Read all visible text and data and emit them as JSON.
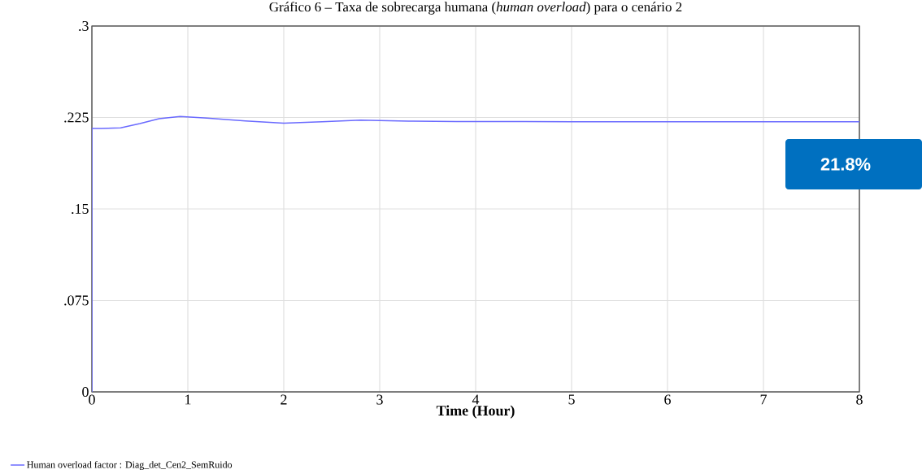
{
  "chart_data": {
    "type": "line",
    "title": "Gráfico 6 – Taxa de sobrecarga humana (*human overload*) para o cenário 2",
    "xlabel": "Time (Hour)",
    "x": [
      0,
      0,
      0.1,
      0.3,
      0.5,
      0.7,
      0.92,
      1.2,
      1.6,
      2.0,
      2.4,
      2.8,
      3.3,
      3.8,
      4.5,
      5.0,
      6.0,
      7.0,
      8.0
    ],
    "series": [
      {
        "name": "Human overload factor : Diag_det_Cen2_SemRuido",
        "color": "#6a6aff",
        "values": [
          0,
          0.216,
          0.216,
          0.2165,
          0.22,
          0.224,
          0.2258,
          0.2245,
          0.2222,
          0.2204,
          0.2215,
          0.2228,
          0.222,
          0.2216,
          0.2217,
          0.2215,
          0.2215,
          0.2215,
          0.2215
        ]
      }
    ],
    "xlim": [
      0,
      8
    ],
    "xticks": [
      0,
      1,
      2,
      3,
      4,
      5,
      6,
      7,
      8
    ],
    "ylim": [
      0,
      0.3
    ],
    "yticks": [
      {
        "value": 0,
        "label": "0"
      },
      {
        "value": 0.075,
        "label": ".075"
      },
      {
        "value": 0.15,
        "label": ".15"
      },
      {
        "value": 0.225,
        "label": ".225"
      },
      {
        "value": 0.3,
        "label": ".3"
      }
    ],
    "grid": true,
    "legend": "bottom",
    "marker": "none",
    "line_style": "solid",
    "annotations": [
      "21.8%"
    ]
  }
}
